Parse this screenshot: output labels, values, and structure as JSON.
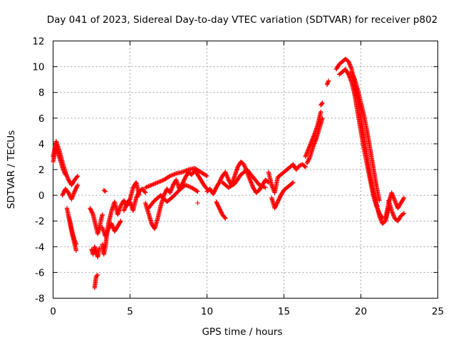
{
  "chart_data": {
    "type": "scatter",
    "title": "Day 041 of 2023, Sidereal Day-to-day VTEC variation (SDTVAR) for receiver p802",
    "xlabel": "GPS time / hours",
    "ylabel": "SDTVAR / TECUs",
    "xlim": [
      0,
      25
    ],
    "ylim": [
      -8,
      12
    ],
    "xticks": [
      0,
      5,
      10,
      15,
      20,
      25
    ],
    "yticks": [
      -8,
      -6,
      -4,
      -2,
      0,
      2,
      4,
      6,
      8,
      10,
      12
    ],
    "grid": true,
    "marker": "+",
    "color": "#ff0000",
    "series": [
      {
        "name": "SDTVAR",
        "segments": [
          {
            "x": [
              0.0,
              0.2,
              0.4,
              0.6,
              0.8,
              1.0,
              1.2,
              1.4,
              1.6
            ],
            "y": [
              3.0,
              4.2,
              3.5,
              2.6,
              1.8,
              1.2,
              0.8,
              1.2,
              1.5
            ]
          },
          {
            "x": [
              0.0,
              0.2,
              0.4,
              0.6,
              0.8
            ],
            "y": [
              2.6,
              3.8,
              3.0,
              2.2,
              1.6
            ]
          },
          {
            "x": [
              0.6,
              0.8,
              1.0,
              1.2,
              1.4,
              1.6
            ],
            "y": [
              0.0,
              0.5,
              0.2,
              -0.3,
              0.3,
              0.8
            ]
          },
          {
            "x": [
              0.9,
              1.0,
              1.1,
              1.2,
              1.3,
              1.4,
              1.5
            ],
            "y": [
              -1.0,
              -1.6,
              -2.2,
              -2.8,
              -3.3,
              -3.8,
              -4.3
            ]
          },
          {
            "x": [
              1.0,
              1.1,
              1.2,
              1.3,
              1.4,
              1.5
            ],
            "y": [
              -1.6,
              -2.0,
              -2.6,
              -3.1,
              -3.5,
              -3.8
            ]
          },
          {
            "x": [
              2.4,
              2.6,
              2.7,
              2.8,
              2.9,
              3.0,
              3.1,
              3.2
            ],
            "y": [
              -1.0,
              -1.5,
              -2.0,
              -2.5,
              -3.0,
              -2.6,
              -2.0,
              -1.5
            ]
          },
          {
            "x": [
              2.5,
              2.6,
              2.7,
              2.8,
              2.9,
              3.0
            ],
            "y": [
              -4.2,
              -4.6,
              -4.0,
              -4.4,
              -4.8,
              -4.1
            ]
          },
          {
            "x": [
              2.7,
              2.8,
              2.9
            ],
            "y": [
              -7.2,
              -6.3,
              -6.2
            ]
          },
          {
            "x": [
              3.2,
              3.3,
              3.4,
              3.5,
              3.6,
              3.8,
              4.0,
              4.2,
              4.4,
              4.6,
              4.8,
              5.0,
              5.2,
              5.4,
              5.6,
              5.8,
              6.0
            ],
            "y": [
              -3.8,
              -4.6,
              -4.0,
              -3.0,
              -2.2,
              -1.2,
              -0.5,
              -1.5,
              -0.8,
              -0.4,
              -0.8,
              -0.5,
              -1.2,
              -0.2,
              0.3,
              0.5,
              0.2
            ]
          },
          {
            "x": [
              3.2,
              3.4,
              3.6,
              3.8,
              4.0,
              4.2,
              4.4
            ],
            "y": [
              -2.5,
              -3.2,
              -2.6,
              -2.2,
              -2.8,
              -2.4,
              -2.0
            ]
          },
          {
            "x": [
              3.3,
              3.4
            ],
            "y": [
              0.4,
              0.3
            ]
          },
          {
            "x": [
              4.6,
              4.8,
              5.0,
              5.2,
              5.4,
              5.6
            ],
            "y": [
              -1.2,
              -0.6,
              -0.3,
              0.6,
              1.0,
              0.0
            ]
          },
          {
            "x": [
              6.0,
              6.2,
              6.4,
              6.6,
              6.8,
              7.0,
              7.2,
              7.4,
              7.6,
              7.8,
              8.0,
              8.2,
              8.4,
              8.6,
              8.8,
              9.0,
              9.2,
              9.4,
              9.6,
              9.8,
              10.0
            ],
            "y": [
              -0.6,
              -1.4,
              -2.2,
              -2.6,
              -1.8,
              -0.8,
              0.0,
              0.5,
              0.2,
              0.8,
              1.2,
              0.5,
              0.9,
              1.4,
              1.8,
              1.6,
              1.9,
              1.6,
              1.2,
              0.8,
              0.5
            ]
          },
          {
            "x": [
              6.0,
              6.4,
              6.8,
              7.2,
              7.6,
              8.0,
              8.4,
              8.8,
              9.2,
              9.6,
              10.0
            ],
            "y": [
              0.6,
              0.8,
              1.0,
              1.2,
              1.5,
              1.7,
              1.8,
              2.0,
              2.1,
              1.8,
              1.5
            ]
          },
          {
            "x": [
              6.2,
              6.6,
              7.0,
              7.4,
              7.8,
              8.2,
              8.6,
              9.0,
              9.4
            ],
            "y": [
              -1.0,
              -0.4,
              0.0,
              -0.5,
              -0.1,
              0.4,
              0.8,
              0.6,
              0.3
            ]
          },
          {
            "x": [
              9.4
            ],
            "y": [
              -0.6
            ]
          },
          {
            "x": [
              10.0,
              10.2,
              10.4,
              10.6,
              10.8,
              11.0,
              11.2,
              11.4,
              11.6,
              11.8,
              12.0,
              12.2,
              12.4,
              12.6,
              12.8,
              13.0,
              13.2,
              13.4,
              13.6,
              13.8,
              14.0
            ],
            "y": [
              0.3,
              0.5,
              0.1,
              0.6,
              1.0,
              1.5,
              1.8,
              1.2,
              0.8,
              1.5,
              2.2,
              2.6,
              2.4,
              1.8,
              1.2,
              0.6,
              0.2,
              0.4,
              0.8,
              1.2,
              1.0
            ]
          },
          {
            "x": [
              10.6,
              10.8,
              11.0,
              11.2
            ],
            "y": [
              -0.5,
              -1.0,
              -1.5,
              -1.8
            ]
          },
          {
            "x": [
              11.0,
              11.4,
              11.8,
              12.2,
              12.6,
              13.0,
              13.4,
              13.8
            ],
            "y": [
              1.0,
              0.6,
              0.9,
              1.6,
              2.0,
              1.4,
              0.8,
              0.6
            ]
          },
          {
            "x": [
              14.0,
              14.2,
              14.4,
              14.6,
              14.8,
              15.0,
              15.2,
              15.4,
              15.6,
              15.8,
              16.0,
              16.2,
              16.4
            ],
            "y": [
              1.8,
              0.8,
              0.2,
              1.4,
              1.6,
              1.8,
              2.0,
              2.2,
              2.4,
              2.0,
              2.3,
              2.4,
              2.2
            ]
          },
          {
            "x": [
              14.2,
              14.4,
              14.6,
              14.8,
              15.0,
              15.2,
              15.4,
              15.6
            ],
            "y": [
              -0.2,
              -1.0,
              -0.5,
              0.0,
              0.4,
              0.6,
              0.8,
              1.0
            ]
          },
          {
            "x": [
              16.4,
              16.6,
              16.8,
              17.0,
              17.2,
              17.4
            ],
            "y": [
              3.0,
              3.6,
              4.2,
              4.8,
              5.5,
              6.5
            ]
          },
          {
            "x": [
              16.5,
              16.7,
              16.9,
              17.1,
              17.3,
              17.5
            ],
            "y": [
              2.5,
              3.0,
              3.8,
              4.4,
              5.2,
              6.0
            ]
          },
          {
            "x": [
              17.4,
              17.5
            ],
            "y": [
              7.0,
              7.2
            ]
          },
          {
            "x": [
              17.8,
              17.9
            ],
            "y": [
              8.6,
              8.9
            ]
          },
          {
            "x": [
              18.4,
              18.6,
              18.8,
              19.0,
              19.2,
              19.4,
              19.6,
              19.8,
              20.0,
              20.2,
              20.4,
              20.6,
              20.8,
              21.0,
              21.2,
              21.4,
              21.6,
              21.8
            ],
            "y": [
              9.8,
              10.2,
              10.4,
              10.6,
              10.4,
              9.8,
              8.6,
              7.4,
              6.0,
              4.6,
              3.0,
              1.6,
              0.4,
              -0.6,
              -1.6,
              -2.2,
              -2.0,
              -1.0
            ]
          },
          {
            "x": [
              18.6,
              18.8,
              19.0,
              19.2,
              19.4,
              19.6,
              19.8,
              20.0,
              20.2,
              20.4,
              20.6,
              20.8,
              21.0,
              21.2,
              21.4
            ],
            "y": [
              9.4,
              9.6,
              9.8,
              9.4,
              8.8,
              7.8,
              6.4,
              5.0,
              3.6,
              2.4,
              1.2,
              0.0,
              -0.8,
              -1.4,
              -1.8
            ]
          },
          {
            "x": [
              19.4,
              19.6,
              19.8,
              20.0,
              20.2,
              20.4,
              20.6,
              20.8,
              21.0,
              21.2
            ],
            "y": [
              9.6,
              9.0,
              8.2,
              7.2,
              6.2,
              5.0,
              3.6,
              2.2,
              0.8,
              -0.4
            ]
          },
          {
            "x": [
              21.6,
              21.8,
              22.0,
              22.2,
              22.4,
              22.6,
              22.8
            ],
            "y": [
              -1.8,
              -0.6,
              0.2,
              -0.4,
              -1.0,
              -0.6,
              -0.2
            ]
          },
          {
            "x": [
              21.8,
              22.0,
              22.2,
              22.4,
              22.6,
              22.8
            ],
            "y": [
              -0.4,
              -1.2,
              -1.8,
              -2.0,
              -1.6,
              -1.4
            ]
          }
        ]
      }
    ]
  }
}
